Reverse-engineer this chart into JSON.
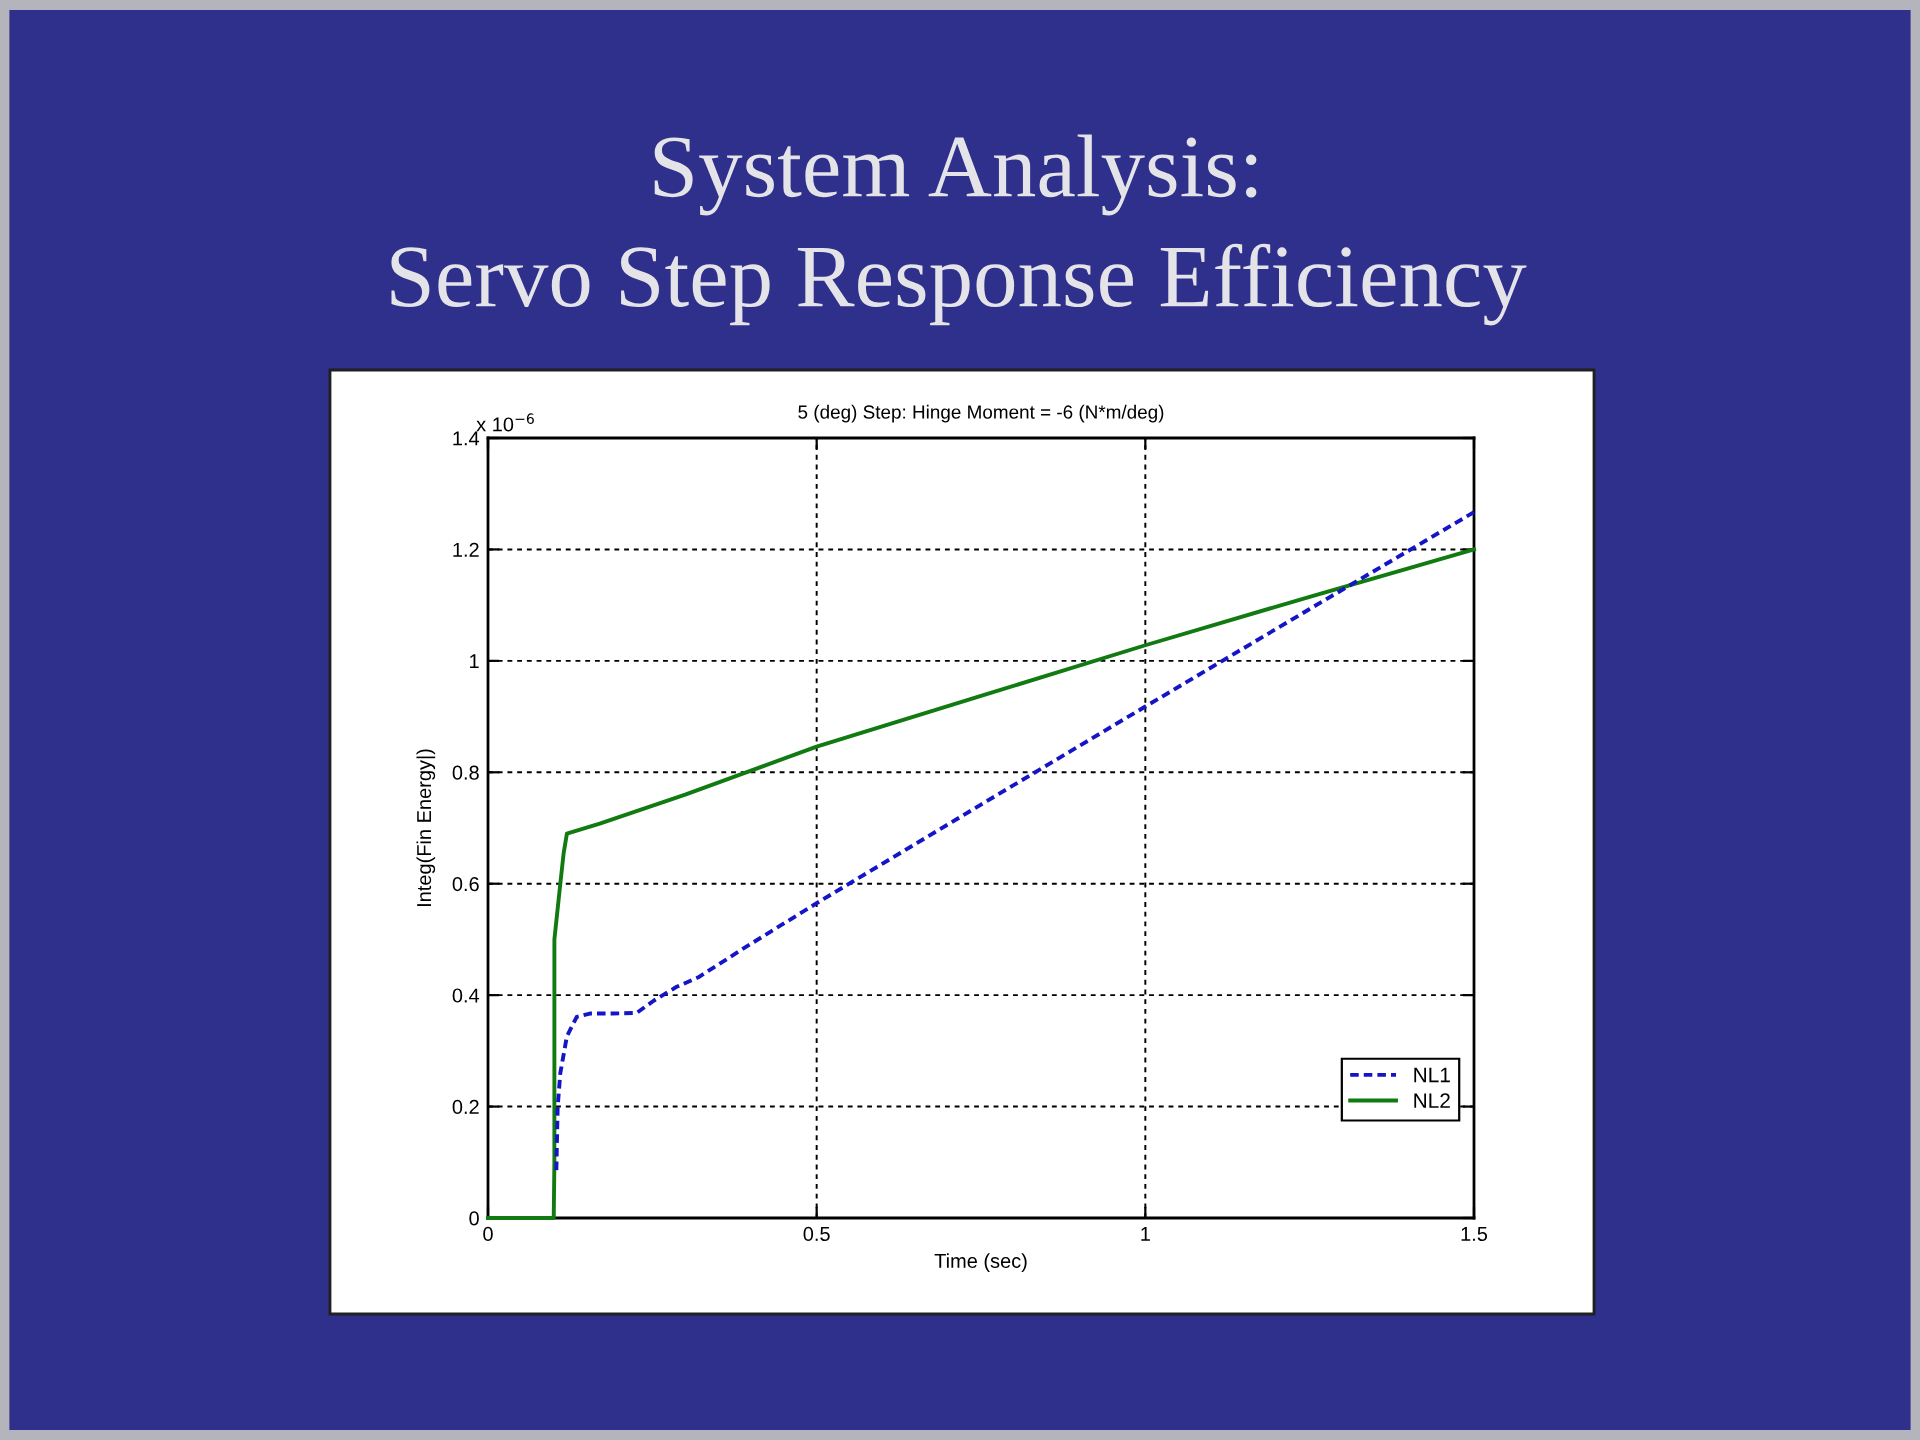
{
  "chart_data": {
    "type": "line",
    "title": "System Analysis:\nServo Step Response Efficiency",
    "subtitle": "5 (deg) Step: Hinge Moment = -6 (N*m/deg)",
    "xlabel": "Time (sec)",
    "ylabel": "Integ(Fin Energy|)",
    "annotations": [
      "x 10$^{−6}$"
    ],
    "series": [
      {
        "name": "NL1",
        "color": "#1515c8",
        "line_style": "dashed",
        "x": [
          0.104,
          0.106,
          0.11,
          0.12,
          0.135,
          0.155,
          0.19,
          0.226,
          0.252,
          0.287,
          0.32,
          0.393,
          0.5,
          0.75,
          1.0,
          1.25,
          1.5
        ],
        "values": [
          0.086,
          0.2,
          0.26,
          0.326,
          0.361,
          0.367,
          0.367,
          0.368,
          0.39,
          0.415,
          0.432,
          0.487,
          0.565,
          0.742,
          0.918,
          1.093,
          1.267
        ]
      },
      {
        "name": "NL2",
        "color": "#117a11",
        "line_style": "solid",
        "x": [
          0,
          0.1,
          0.101,
          0.101,
          0.11,
          0.115,
          0.12,
          0.17,
          0.3,
          0.5,
          0.75,
          1.0,
          1.25,
          1.5
        ],
        "values": [
          0,
          0,
          0.1,
          0.5,
          0.6,
          0.654,
          0.69,
          0.708,
          0.76,
          0.846,
          0.937,
          1.028,
          1.115,
          1.2
        ]
      }
    ],
    "xlim": [
      0,
      1.5
    ],
    "ylim": [
      0,
      1.4
    ],
    "xticks": [
      0,
      0.5,
      1,
      1.5
    ],
    "yticks": [
      0,
      0.2,
      0.4,
      0.6,
      0.8,
      1,
      1.2,
      1.4
    ],
    "grid": true,
    "legend": "bottom right",
    "marker": "none"
  }
}
